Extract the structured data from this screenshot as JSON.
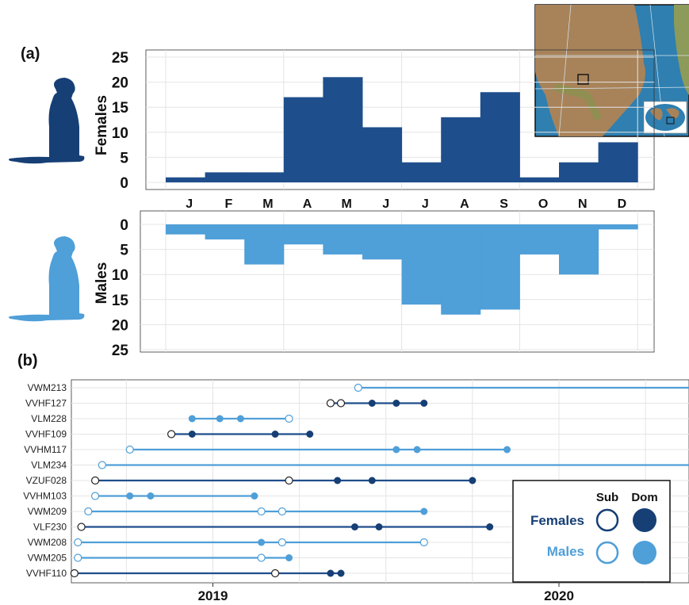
{
  "panel_a_label": "(a)",
  "panel_b_label": "(b)",
  "colors": {
    "female": "#1f4e8c",
    "male": "#4f9fd8",
    "female_dark": "#163f75",
    "grid": "#e4e4e4",
    "map_sea": "#2f7fb0",
    "map_land": "#a8835a"
  },
  "icons": {
    "female": "meerkat-silhouette-icon",
    "male": "meerkat-silhouette-icon",
    "map": "southern-africa-map"
  },
  "chart_data": [
    {
      "type": "bar",
      "panel": "(a) upper",
      "title": "",
      "xlabel": "",
      "ylabel": "Females",
      "categories": [
        "J",
        "F",
        "M",
        "A",
        "M",
        "J",
        "J",
        "A",
        "S",
        "O",
        "N",
        "D"
      ],
      "values": [
        1,
        2,
        2,
        17,
        21,
        11,
        4,
        13,
        18,
        1,
        4,
        8
      ],
      "ylim": [
        0,
        25
      ],
      "yticks": [
        "0",
        "5",
        "10",
        "15",
        "20",
        "25"
      ],
      "grid": true
    },
    {
      "type": "bar",
      "panel": "(a) lower",
      "title": "",
      "xlabel": "",
      "ylabel": "Males",
      "categories": [
        "J",
        "F",
        "M",
        "A",
        "M",
        "J",
        "J",
        "A",
        "S",
        "O",
        "N",
        "D"
      ],
      "values": [
        2,
        3,
        8,
        4,
        6,
        7,
        16,
        18,
        17,
        6,
        10,
        1
      ],
      "ylim": [
        0,
        25
      ],
      "y_inverted": true,
      "yticks": [
        "0",
        "5",
        "10",
        "15",
        "20",
        "25"
      ],
      "grid": true
    },
    {
      "type": "scatter",
      "panel": "(b)",
      "title": "",
      "xlabel": "",
      "ylabel": "",
      "x_unit": "date (years)",
      "xlim": [
        2018.6,
        2020.73
      ],
      "xticks": [
        "2019",
        "2020"
      ],
      "grid": true,
      "legend": {
        "placement": "bottom-right",
        "col_headers": [
          "Sub",
          "Dom"
        ],
        "rows": [
          "Females",
          "Males"
        ]
      },
      "series": [
        {
          "name": "VWM213",
          "sex": "male",
          "start": 2019.42,
          "end": 2020.7,
          "sub": [
            2019.42
          ],
          "dom": [
            2020.7
          ]
        },
        {
          "name": "VVHF127",
          "sex": "female",
          "start": 2019.34,
          "end": 2019.61,
          "sub": [
            2019.34,
            2019.37
          ],
          "dom": [
            2019.46,
            2019.53,
            2019.61
          ]
        },
        {
          "name": "VLM228",
          "sex": "male",
          "start": 2018.94,
          "end": 2019.22,
          "sub": [
            2019.22
          ],
          "dom": [
            2018.94,
            2019.02,
            2019.08
          ]
        },
        {
          "name": "VVHF109",
          "sex": "female",
          "start": 2018.88,
          "end": 2019.28,
          "sub": [
            2018.88
          ],
          "dom": [
            2018.94,
            2019.18,
            2019.28
          ]
        },
        {
          "name": "VVHM117",
          "sex": "male",
          "start": 2018.76,
          "end": 2019.85,
          "sub": [
            2018.76
          ],
          "dom": [
            2019.53,
            2019.59,
            2019.85
          ]
        },
        {
          "name": "VLM234",
          "sex": "male",
          "start": 2018.68,
          "end": 2020.66,
          "sub": [
            2018.68
          ],
          "dom": [
            2020.66
          ]
        },
        {
          "name": "VZUF028",
          "sex": "female",
          "start": 2018.66,
          "end": 2019.75,
          "sub": [
            2018.66,
            2019.22
          ],
          "dom": [
            2019.36,
            2019.46,
            2019.75
          ]
        },
        {
          "name": "VVHM103",
          "sex": "male",
          "start": 2018.66,
          "end": 2019.12,
          "sub": [
            2018.66
          ],
          "dom": [
            2018.76,
            2018.82,
            2019.12
          ]
        },
        {
          "name": "VWM209",
          "sex": "male",
          "start": 2018.64,
          "end": 2019.61,
          "sub": [
            2018.64,
            2019.14,
            2019.2
          ],
          "dom": [
            2019.61
          ]
        },
        {
          "name": "VLF230",
          "sex": "female",
          "start": 2018.62,
          "end": 2019.8,
          "sub": [
            2018.62
          ],
          "dom": [
            2019.41,
            2019.48,
            2019.8
          ]
        },
        {
          "name": "VWM208",
          "sex": "male",
          "start": 2018.61,
          "end": 2019.61,
          "sub": [
            2018.61,
            2019.2,
            2019.61
          ],
          "dom": [
            2019.14
          ]
        },
        {
          "name": "VWM205",
          "sex": "male",
          "start": 2018.61,
          "end": 2019.22,
          "sub": [
            2018.61,
            2019.14
          ],
          "dom": [
            2019.22
          ]
        },
        {
          "name": "VVHF110",
          "sex": "female",
          "start": 2018.6,
          "end": 2019.37,
          "sub": [
            2018.6,
            2019.18
          ],
          "dom": [
            2019.34,
            2019.37
          ]
        }
      ]
    }
  ]
}
